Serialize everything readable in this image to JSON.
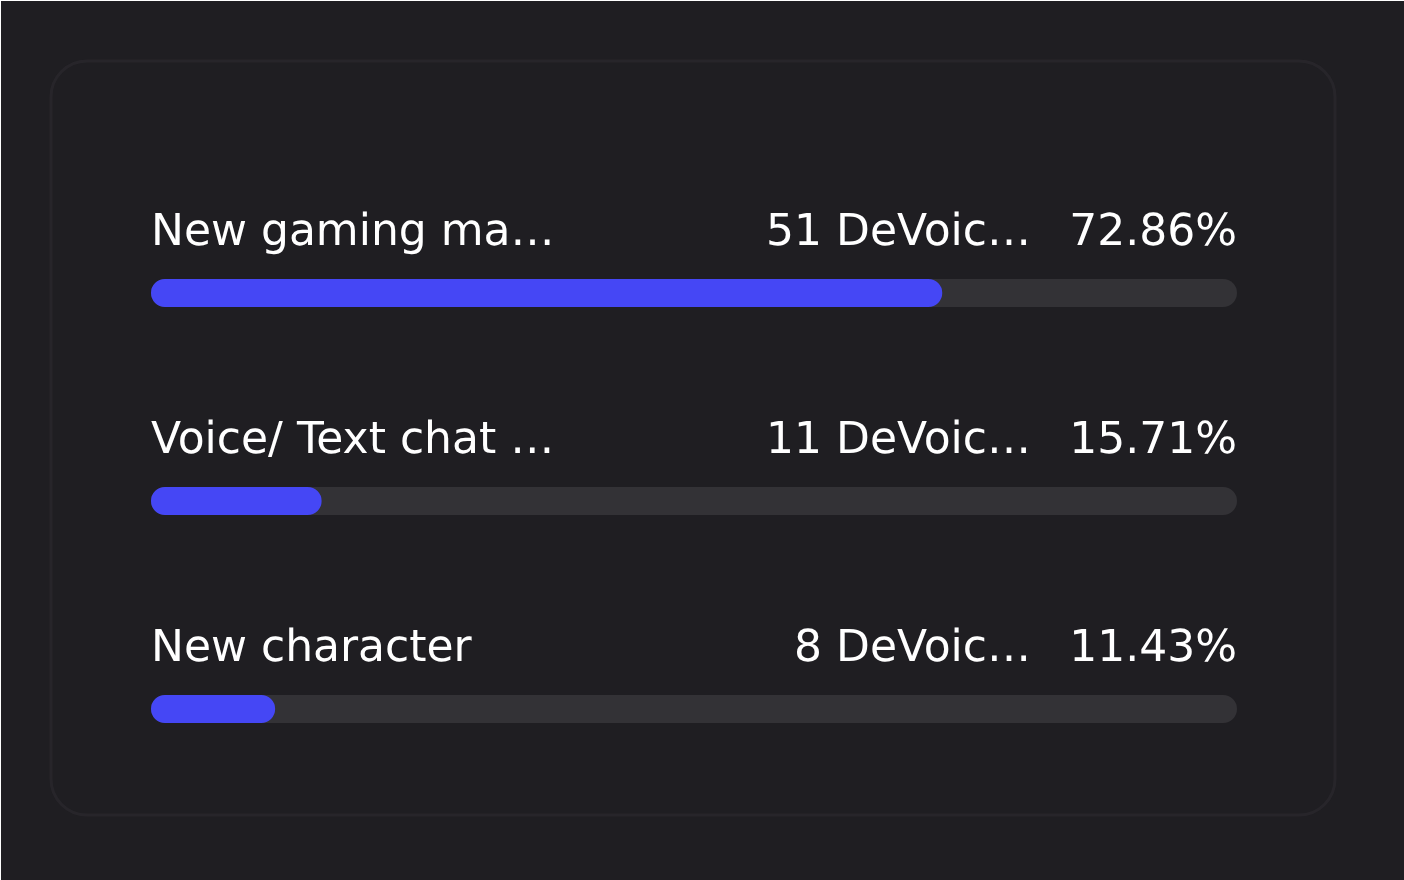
{
  "chart_data": {
    "type": "bar",
    "orientation": "horizontal",
    "categories": [
      "New gaming ma…",
      "Voice/ Text chat …",
      "New character"
    ],
    "series": [
      {
        "color": "#4547f5",
        "values": [
          72.86,
          15.71,
          11.43
        ],
        "value_labels": [
          "72.86%",
          "15.71%",
          "11.43%"
        ]
      }
    ],
    "xlim": [
      0,
      100
    ],
    "tick_labels": false,
    "grid": false,
    "annotations": [
      "51 DeVoic…",
      "11 DeVoic…",
      "8 DeVoic…"
    ]
  }
}
